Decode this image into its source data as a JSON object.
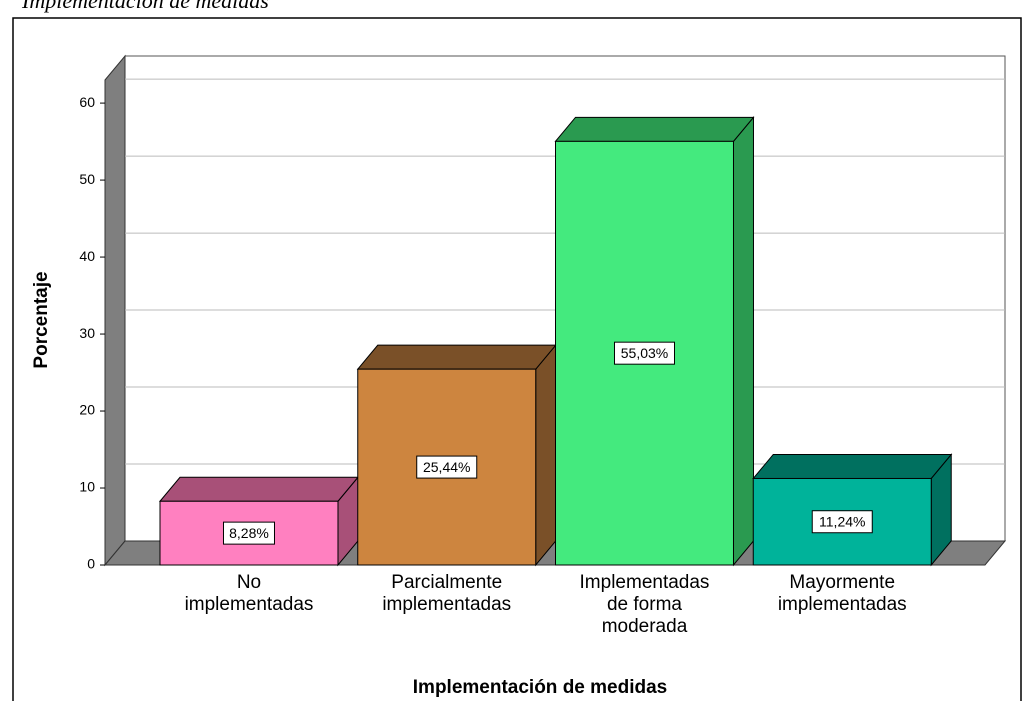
{
  "caption": "Implementación de medidas",
  "chart_data": {
    "type": "bar3d",
    "categories": [
      "No\nimplementadas",
      "Parcialmente\nimplementadas",
      "Implementadas\nde forma\nmoderada",
      "Mayormente\nimplementadas"
    ],
    "values": [
      8.28,
      25.44,
      55.03,
      11.24
    ],
    "value_labels": [
      "8,28%",
      "25,44%",
      "55,03%",
      "11,24%"
    ],
    "colors": [
      "#ff80c0",
      "#cd853f",
      "#44ea7e",
      "#00b39a"
    ],
    "top_colors": [
      "#a85078",
      "#7a5028",
      "#2a9a50",
      "#00705f"
    ],
    "ylabel": "Porcentaje",
    "xlabel": "Implementación de medidas",
    "ylim": [
      0,
      63
    ],
    "yticks": [
      0,
      10,
      20,
      30,
      40,
      50,
      60
    ],
    "grid": true
  }
}
